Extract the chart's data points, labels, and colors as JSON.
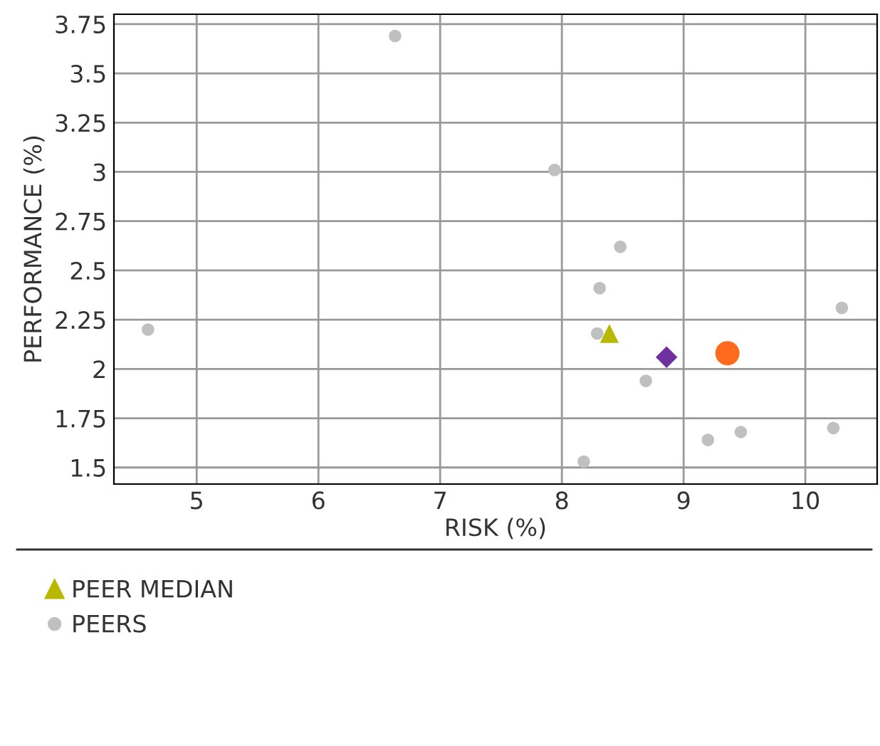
{
  "chart_data": {
    "type": "scatter",
    "xlabel": "RISK (%)",
    "ylabel": "PERFORMANCE (%)",
    "xlim": [
      4.32,
      10.59
    ],
    "xticks": [
      5,
      6,
      7,
      8,
      9,
      10
    ],
    "ylim": [
      1.416,
      3.8
    ],
    "yticks": [
      {
        "value": 1.5,
        "label": "1.5"
      },
      1.75,
      2,
      2.25,
      2.5,
      2.75,
      3,
      3.25,
      3.5,
      3.75
    ],
    "grid": true,
    "legend": "bottom",
    "series": [
      {
        "color": "#ff6a1c",
        "marker": "circle",
        "x": [
          9.36
        ],
        "values": [
          2.08
        ]
      },
      {
        "color": "#7030a0",
        "marker": "diamond",
        "x": [
          8.86
        ],
        "values": [
          2.06
        ]
      },
      {
        "name": "PEER MEDIAN",
        "color": "#b8b800",
        "marker": "triangle",
        "x": [
          8.39
        ],
        "values": [
          2.18
        ]
      },
      {
        "name": "PEERS",
        "color": "#c0c0c0",
        "marker": "circle",
        "x": [
          6.63,
          7.94,
          8.48,
          8.31,
          4.6,
          8.29,
          10.3,
          8.69,
          9.2,
          9.47,
          10.23,
          8.18
        ],
        "values": [
          3.69,
          3.01,
          2.62,
          2.41,
          2.2,
          2.18,
          2.31,
          1.94,
          1.64,
          1.68,
          1.7,
          1.53
        ]
      }
    ]
  }
}
